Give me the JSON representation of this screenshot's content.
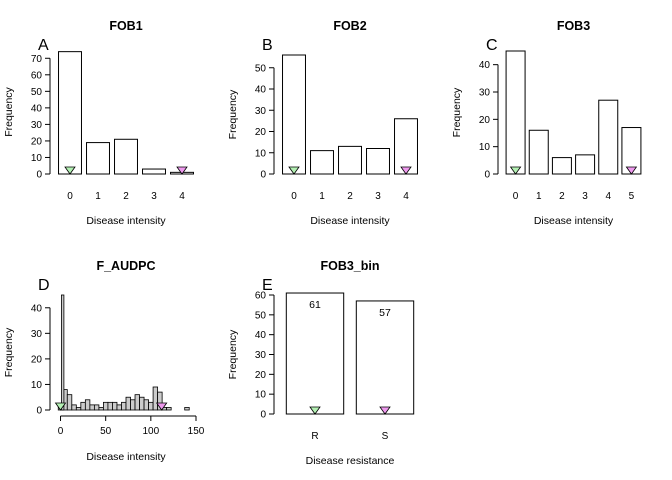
{
  "chart_data": [
    {
      "panel": "A",
      "title": "FOB1",
      "type": "bar",
      "xlabel": "Disease intensity",
      "ylabel": "Frequency",
      "categories": [
        "0",
        "1",
        "2",
        "3",
        "4"
      ],
      "values": [
        74,
        19,
        21,
        3,
        1
      ],
      "ylim": [
        0,
        75
      ],
      "yticks": [
        0,
        10,
        20,
        30,
        40,
        50,
        60,
        70
      ],
      "markers": [
        {
          "at": "0",
          "color": "#b3f0b3"
        },
        {
          "at": "4",
          "color": "#ee99ee"
        }
      ]
    },
    {
      "panel": "B",
      "title": "FOB2",
      "type": "bar",
      "xlabel": "Disease intensity",
      "ylabel": "Frequency",
      "categories": [
        "0",
        "1",
        "2",
        "3",
        "4"
      ],
      "values": [
        56,
        11,
        13,
        12,
        26
      ],
      "ylim": [
        0,
        56
      ],
      "yticks": [
        0,
        10,
        20,
        30,
        40,
        50
      ],
      "markers": [
        {
          "at": "0",
          "color": "#b3f0b3"
        },
        {
          "at": "4",
          "color": "#ee99ee"
        }
      ]
    },
    {
      "panel": "C",
      "title": "FOB3",
      "type": "bar",
      "xlabel": "Disease intensity",
      "ylabel": "Frequency",
      "categories": [
        "0",
        "1",
        "2",
        "3",
        "4",
        "5"
      ],
      "values": [
        45,
        16,
        6,
        7,
        27,
        17
      ],
      "ylim": [
        0,
        45
      ],
      "yticks": [
        0,
        10,
        20,
        30,
        40
      ],
      "markers": [
        {
          "at": "0",
          "color": "#b3f0b3"
        },
        {
          "at": "5",
          "color": "#ee99ee"
        }
      ]
    },
    {
      "panel": "D",
      "title": "F_AUDPC",
      "type": "histogram",
      "xlabel": "Disease intensity",
      "ylabel": "Frequency",
      "bin_width": 5,
      "bins": [
        {
          "x": 0,
          "count": 2
        },
        {
          "x": 5,
          "count": 8
        },
        {
          "x": 10,
          "count": 6
        },
        {
          "x": 15,
          "count": 2
        },
        {
          "x": 20,
          "count": 1
        },
        {
          "x": 25,
          "count": 3
        },
        {
          "x": 30,
          "count": 4
        },
        {
          "x": 35,
          "count": 2
        },
        {
          "x": 40,
          "count": 2
        },
        {
          "x": 45,
          "count": 1
        },
        {
          "x": 50,
          "count": 3
        },
        {
          "x": 55,
          "count": 3
        },
        {
          "x": 60,
          "count": 3
        },
        {
          "x": 65,
          "count": 2
        },
        {
          "x": 70,
          "count": 3
        },
        {
          "x": 75,
          "count": 5
        },
        {
          "x": 80,
          "count": 4
        },
        {
          "x": 85,
          "count": 6
        },
        {
          "x": 90,
          "count": 5
        },
        {
          "x": 95,
          "count": 4
        },
        {
          "x": 100,
          "count": 3
        },
        {
          "x": 105,
          "count": 9
        },
        {
          "x": 110,
          "count": 7
        },
        {
          "x": 115,
          "count": 1
        },
        {
          "x": 120,
          "count": 1
        },
        {
          "x": 125,
          "count": 0
        },
        {
          "x": 130,
          "count": 0
        },
        {
          "x": 135,
          "count": 0
        },
        {
          "x": 140,
          "count": 1
        }
      ],
      "tall_bin": {
        "x": 0,
        "count": 45
      },
      "xlim": [
        -5,
        150
      ],
      "ylim": [
        0,
        45
      ],
      "xticks": [
        0,
        50,
        100,
        150
      ],
      "yticks": [
        0,
        10,
        20,
        30,
        40
      ],
      "markers": [
        {
          "x": 0,
          "color": "#b3f0b3"
        },
        {
          "x": 112,
          "color": "#ee99ee"
        }
      ]
    },
    {
      "panel": "E",
      "title": "FOB3_bin",
      "type": "bar",
      "xlabel": "Disease resistance",
      "ylabel": "Frequency",
      "categories": [
        "R",
        "S"
      ],
      "values": [
        61,
        57
      ],
      "data_labels": [
        "61",
        "57"
      ],
      "ylim": [
        0,
        60
      ],
      "yticks": [
        0,
        10,
        20,
        30,
        40,
        50,
        60
      ],
      "markers": [
        {
          "at": "R",
          "color": "#b3f0b3"
        },
        {
          "at": "S",
          "color": "#ee99ee"
        }
      ]
    }
  ]
}
